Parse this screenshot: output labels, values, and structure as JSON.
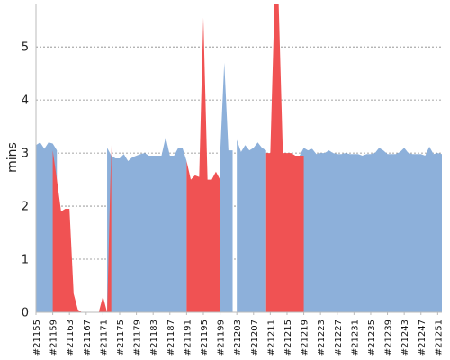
{
  "chart_data": {
    "type": "area",
    "ylabel": "mins",
    "ylim": [
      0,
      5.8
    ],
    "yticks": [
      0,
      1,
      2,
      3,
      4,
      5
    ],
    "grid": true,
    "x_start": 21155,
    "x_end": 21252,
    "x_tick_labels": [
      "#21155",
      "#21159",
      "#21163",
      "#21167",
      "#21171",
      "#21175",
      "#21179",
      "#21183",
      "#21187",
      "#21191",
      "#21195",
      "#21199",
      "#21203",
      "#21207",
      "#21211",
      "#21215",
      "#21219",
      "#21223",
      "#21227",
      "#21231",
      "#21235",
      "#21239",
      "#21243",
      "#21247",
      "#21251"
    ],
    "series": [
      {
        "status": "passed",
        "color": "#8db0da",
        "segments": [
          {
            "x": [
              21155,
              21156,
              21157,
              21158,
              21159,
              21160
            ],
            "y": [
              3.15,
              3.2,
              3.08,
              3.2,
              3.18,
              3.05
            ]
          },
          {
            "x": [
              21172,
              21173,
              21174,
              21175,
              21176,
              21177,
              21178,
              21179,
              21180,
              21181,
              21182,
              21183,
              21184,
              21185,
              21186,
              21187,
              21188,
              21189,
              21190,
              21191
            ],
            "y": [
              3.1,
              2.95,
              2.9,
              2.9,
              2.98,
              2.85,
              2.92,
              2.95,
              2.98,
              3.0,
              2.95,
              2.95,
              2.95,
              2.95,
              3.3,
              2.95,
              2.95,
              3.1,
              3.1,
              2.85
            ]
          },
          {
            "x": [
              21199,
              21200,
              21201,
              21202
            ],
            "y": [
              2.95,
              4.7,
              3.05,
              3.05
            ]
          },
          {
            "x": [
              21203,
              21204,
              21205,
              21206,
              21207,
              21208,
              21209,
              21210
            ],
            "y": [
              3.25,
              3.02,
              3.15,
              3.05,
              3.1,
              3.2,
              3.1,
              3.05
            ]
          },
          {
            "x": [
              21218,
              21219,
              21220,
              21221,
              21222,
              21223,
              21224,
              21225,
              21226,
              21227,
              21228,
              21229,
              21230,
              21231,
              21232,
              21233,
              21234,
              21235,
              21236,
              21237,
              21238,
              21239,
              21240,
              21241,
              21242,
              21243,
              21244,
              21245,
              21246,
              21247,
              21248,
              21249,
              21250,
              21251,
              21252
            ],
            "y": [
              2.95,
              3.1,
              3.05,
              3.08,
              2.98,
              3.0,
              3.0,
              3.05,
              3.0,
              2.98,
              2.98,
              3.0,
              2.98,
              2.98,
              2.98,
              2.95,
              2.98,
              2.98,
              3.0,
              3.1,
              3.05,
              2.98,
              2.98,
              2.98,
              3.02,
              3.1,
              3.0,
              2.98,
              2.98,
              2.98,
              2.95,
              3.12,
              2.98,
              3.0,
              2.98
            ]
          }
        ]
      },
      {
        "status": "failed",
        "color": "#f05253",
        "segments": [
          {
            "x": [
              21159,
              21160,
              21161,
              21162,
              21163,
              21164,
              21165,
              21166,
              21167,
              21168,
              21169,
              21170,
              21171,
              21172
            ],
            "y": [
              3.05,
              2.5,
              1.9,
              1.95,
              1.95,
              0.35,
              0.05,
              0.0,
              0.0,
              0.0,
              0.0,
              0.0,
              0.3,
              0.0
            ]
          },
          {
            "x": [
              21172,
              21173
            ],
            "y": [
              0.0,
              3.15
            ]
          },
          {
            "x": [
              21191,
              21192,
              21193,
              21194,
              21195,
              21196,
              21197,
              21198,
              21199
            ],
            "y": [
              2.85,
              2.5,
              2.58,
              2.55,
              5.55,
              2.5,
              2.5,
              2.65,
              2.5
            ]
          },
          {
            "x": [
              21202,
              21203
            ],
            "y": [
              0.0,
              0.0
            ]
          },
          {
            "x": [
              21210,
              21211,
              21212,
              21213,
              21214,
              21215,
              21216,
              21217,
              21218,
              21219
            ],
            "y": [
              3.0,
              3.0,
              5.8,
              5.8,
              3.0,
              3.0,
              3.0,
              2.95,
              2.95,
              2.95
            ]
          }
        ]
      }
    ]
  }
}
